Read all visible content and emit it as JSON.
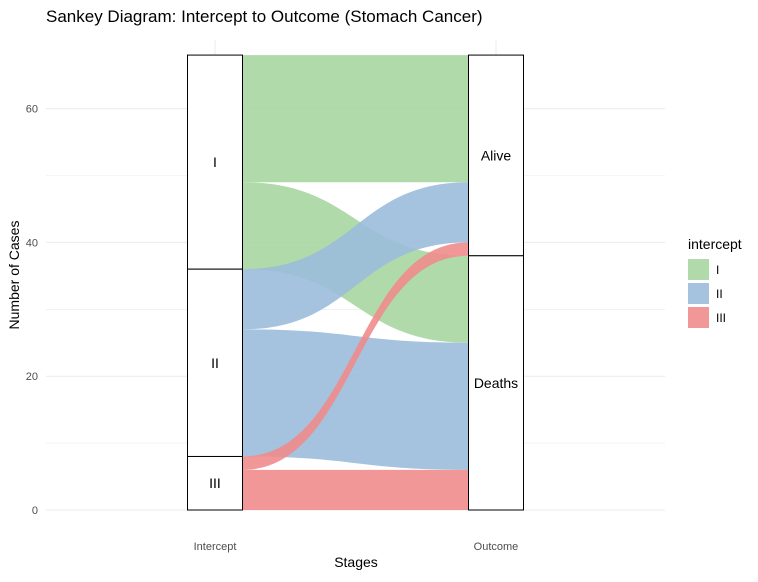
{
  "chart_data": {
    "type": "sankey",
    "title": "Sankey Diagram: Intercept to Outcome (Stomach Cancer)",
    "xlabel": "Stages",
    "ylabel": "Number of Cases",
    "x_categories": [
      "Intercept",
      "Outcome"
    ],
    "ylim": [
      0,
      68
    ],
    "y_ticks": [
      0,
      20,
      40,
      60
    ],
    "grid": true,
    "legend": {
      "title": "intercept",
      "position": "right",
      "entries": [
        {
          "label": "I",
          "color": "#a7d6a1"
        },
        {
          "label": "II",
          "color": "#9bbcdc"
        },
        {
          "label": "III",
          "color": "#f08c8c"
        }
      ]
    },
    "left_strata": [
      {
        "label": "I",
        "value": 32
      },
      {
        "label": "II",
        "value": 28
      },
      {
        "label": "III",
        "value": 8
      }
    ],
    "right_strata": [
      {
        "label": "Alive",
        "value": 30
      },
      {
        "label": "Deaths",
        "value": 38
      }
    ],
    "flows": [
      {
        "from": "I",
        "to": "Alive",
        "value": 19
      },
      {
        "from": "I",
        "to": "Deaths",
        "value": 13
      },
      {
        "from": "II",
        "to": "Alive",
        "value": 9
      },
      {
        "from": "II",
        "to": "Deaths",
        "value": 19
      },
      {
        "from": "III",
        "to": "Alive",
        "value": 2
      },
      {
        "from": "III",
        "to": "Deaths",
        "value": 6
      }
    ]
  }
}
